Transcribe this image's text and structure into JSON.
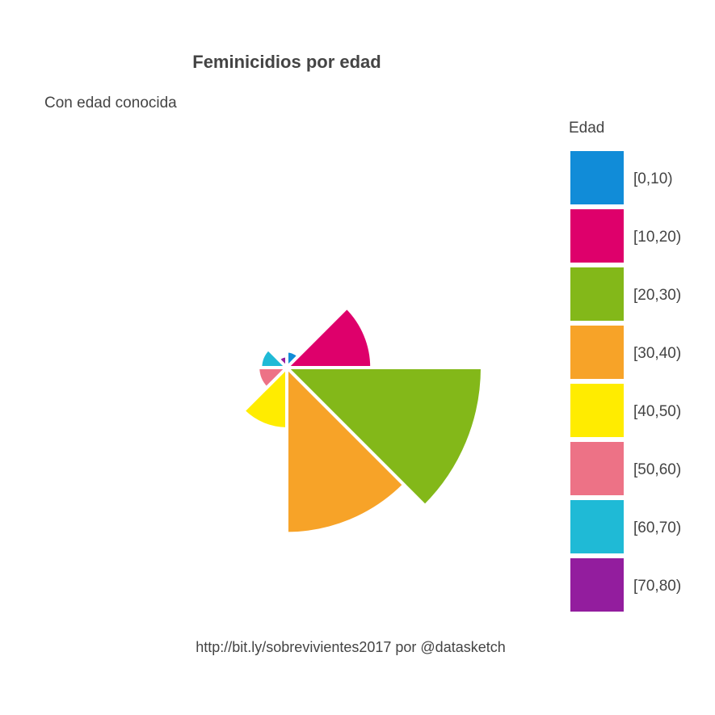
{
  "chart_data": {
    "type": "pie",
    "variant": "rose",
    "title": "Feminicidios por edad",
    "subtitle": "Con edad conocida",
    "caption": "http://bit.ly/sobrevivientes2017 por @datasketch",
    "legend": {
      "title": "Edad",
      "position": "right"
    },
    "categories": [
      "[0,10)",
      "[10,20)",
      "[20,30)",
      "[30,40)",
      "[40,50)",
      "[50,60)",
      "[60,70)",
      "[70,80)"
    ],
    "values": [
      2,
      52,
      275,
      198,
      27,
      6,
      5,
      1
    ],
    "colors": [
      "#118cd8",
      "#de006b",
      "#83b819",
      "#f7a328",
      "#ffec00",
      "#ed7286",
      "#1fbad6",
      "#931d9e"
    ]
  }
}
